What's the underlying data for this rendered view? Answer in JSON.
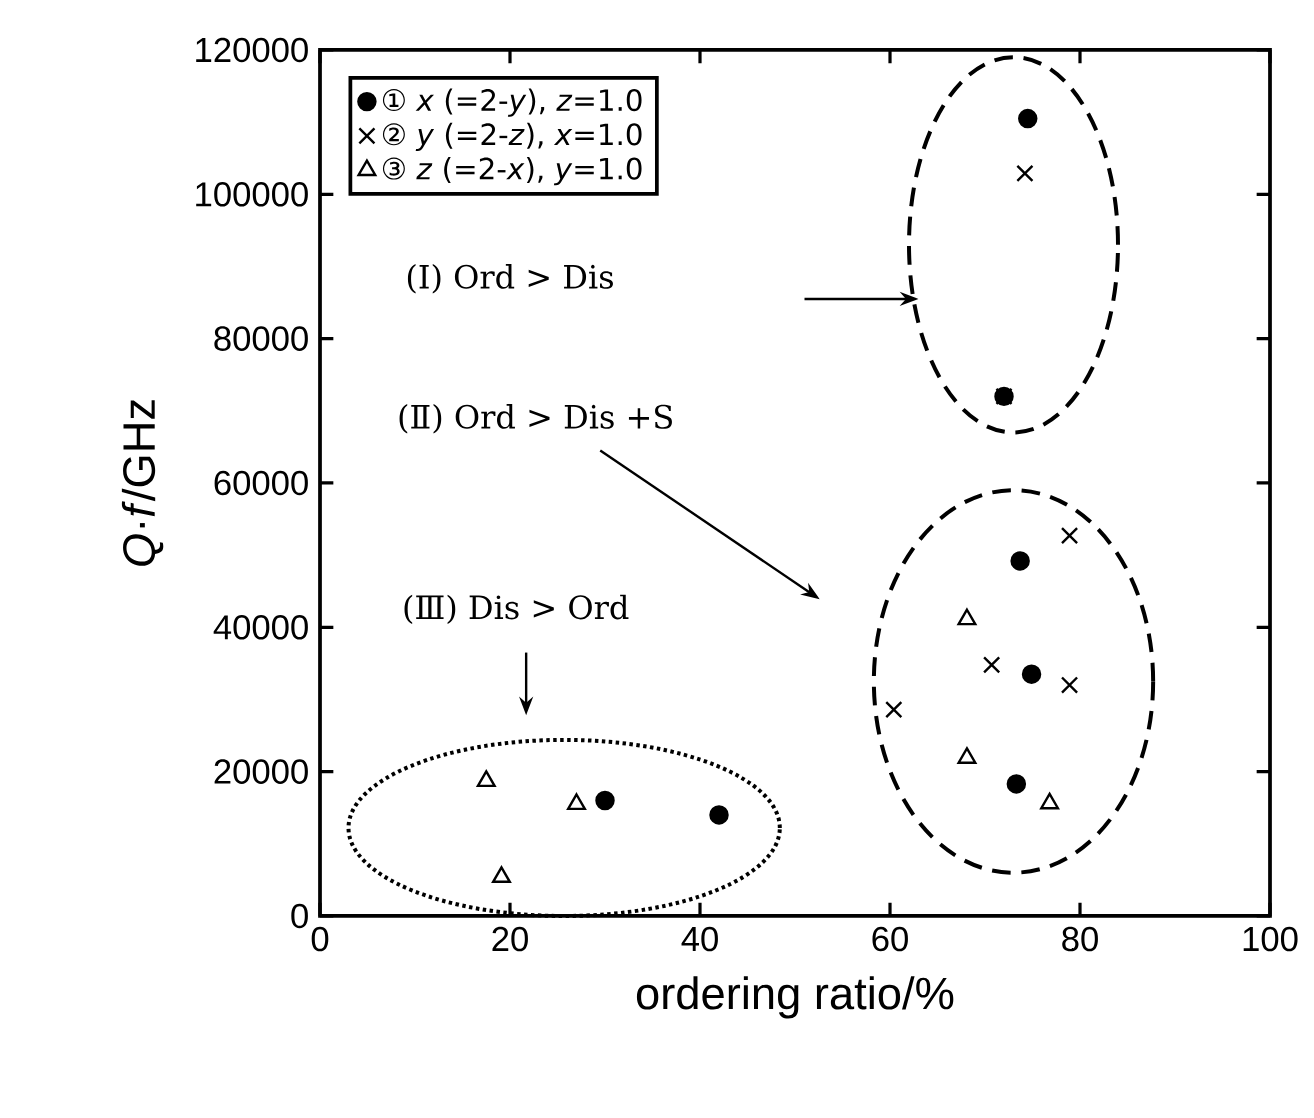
{
  "chart_data": {
    "type": "scatter",
    "xlabel": "ordering  ratio/%",
    "ylabel": "*Q*·*f*/GHz",
    "xlim": [
      0,
      100
    ],
    "xticks": [
      0,
      20,
      40,
      60,
      80,
      100
    ],
    "ylim": [
      0,
      120000
    ],
    "yticks": [
      0,
      20000,
      40000,
      60000,
      80000,
      100000,
      120000
    ],
    "legend": "top left",
    "grid": false,
    "series": [
      {
        "name": "① *x*  (=2-*y*), *z*=1.0",
        "color": "#000000",
        "marker": "circle",
        "x": [
          30,
          42,
          74.5,
          72,
          73.7,
          74.9,
          73.3
        ],
        "values": [
          16000,
          14000,
          110500,
          72000,
          49200,
          33500,
          18300
        ]
      },
      {
        "name": "② *y*  (=2-*z*), *x*=1.0",
        "color": "#000000",
        "marker": "cross",
        "x": [
          74.2,
          72,
          78.9,
          70.7,
          78.9,
          60.4
        ],
        "values": [
          102900,
          72000,
          52700,
          34800,
          32000,
          28600
        ]
      },
      {
        "name": "③ *z*  (=2-*x*), *y*=1.0",
        "color": "#000000",
        "marker": "triangle",
        "x": [
          68.1,
          68.1,
          76.8,
          17.5,
          27,
          19.1
        ],
        "values": [
          41100,
          21900,
          15600,
          18700,
          15500,
          5400
        ]
      }
    ],
    "annotations": [
      "(Ⅰ) Ord > Dis",
      "(Ⅱ) Ord > Dis +S",
      "(Ⅲ) Dis > Ord"
    ]
  }
}
